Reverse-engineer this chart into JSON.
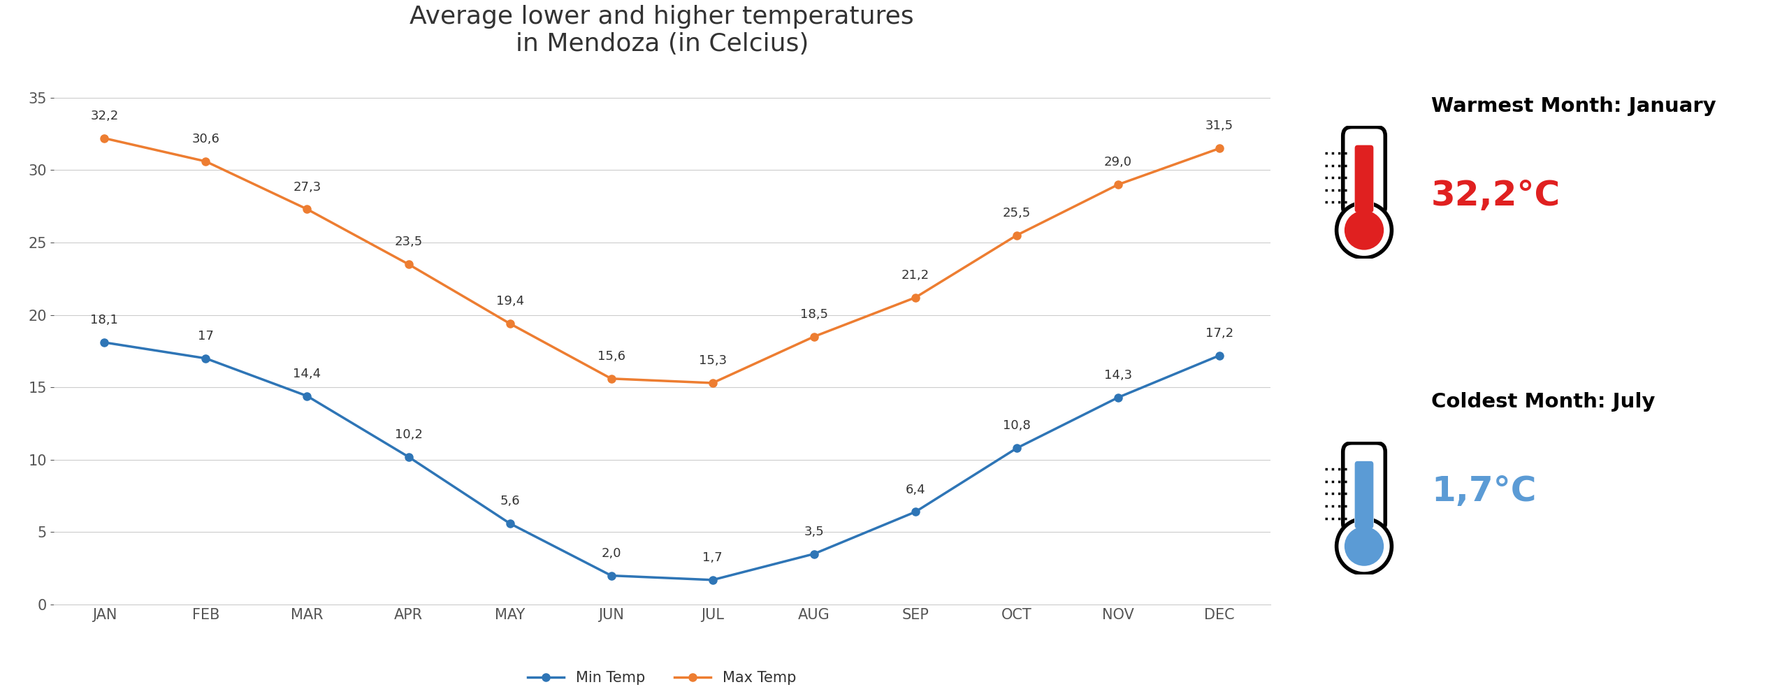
{
  "months": [
    "JAN",
    "FEB",
    "MAR",
    "APR",
    "MAY",
    "JUN",
    "JUL",
    "AUG",
    "SEP",
    "OCT",
    "NOV",
    "DEC"
  ],
  "min_temps": [
    18.1,
    17.0,
    14.4,
    10.2,
    5.6,
    2.0,
    1.7,
    3.5,
    6.4,
    10.8,
    14.3,
    17.2
  ],
  "max_temps": [
    32.2,
    30.6,
    27.3,
    23.5,
    19.4,
    15.6,
    15.3,
    18.5,
    21.2,
    25.5,
    29.0,
    31.5
  ],
  "min_color": "#2E75B6",
  "max_color": "#ED7D31",
  "title_line1": "Average lower and higher temperatures",
  "title_line2": "in Mendoza (in Celcius)",
  "legend_min": "Min Temp",
  "legend_max": "Max Temp",
  "ylim_min": 0,
  "ylim_max": 37,
  "warmest_month": "January",
  "warmest_temp": "32,2°C",
  "coldest_month": "July",
  "coldest_temp": "1,7°C",
  "background_color": "#FFFFFF",
  "grid_color": "#CCCCCC",
  "label_color_warm": "#E02020",
  "label_color_cold": "#5B9BD5",
  "title_fontsize": 26,
  "tick_fontsize": 15,
  "data_fontsize": 13
}
